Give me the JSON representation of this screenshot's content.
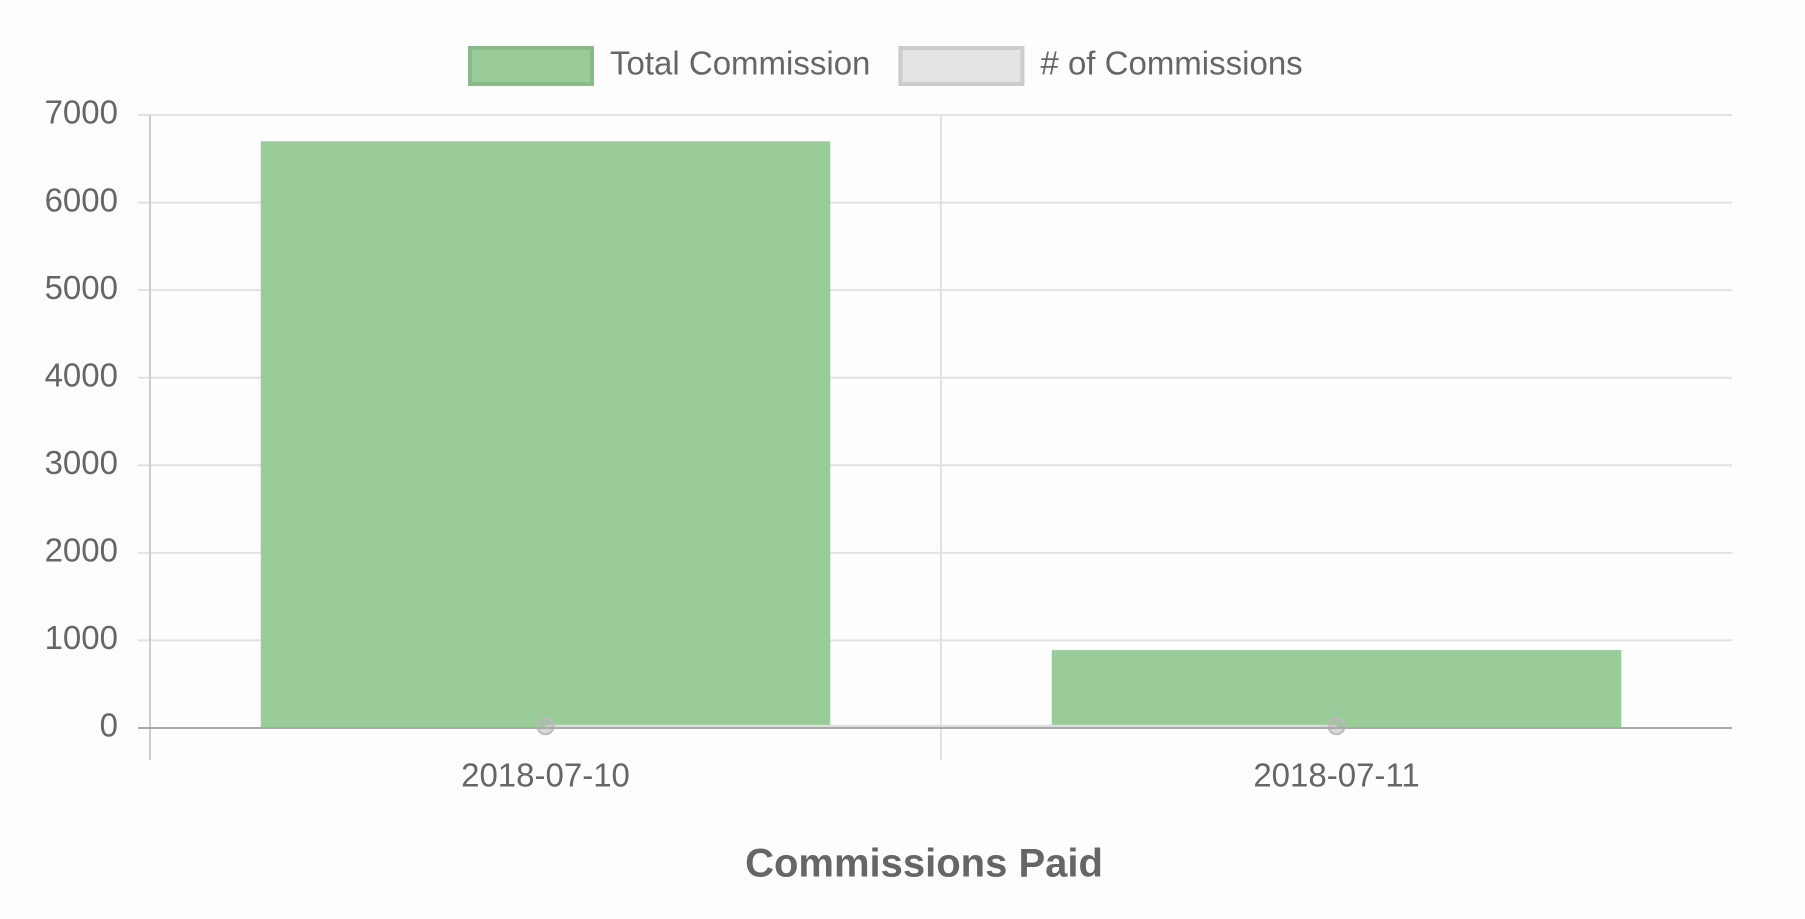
{
  "chart_data": {
    "type": "bar",
    "categories": [
      "2018-07-10",
      "2018-07-11"
    ],
    "series": [
      {
        "name": "Total Commission",
        "type": "bar",
        "color": "#99cc99",
        "values": [
          6700,
          890
        ]
      },
      {
        "name": "# of Commissions",
        "type": "line",
        "color": "#dddddd",
        "values": [
          20,
          20
        ]
      }
    ],
    "x_label": "Commissions Paid",
    "ylim": [
      0,
      7000
    ],
    "yticks": [
      0,
      1000,
      2000,
      3000,
      4000,
      5000,
      6000,
      7000
    ],
    "grid": true,
    "legend": "top"
  }
}
